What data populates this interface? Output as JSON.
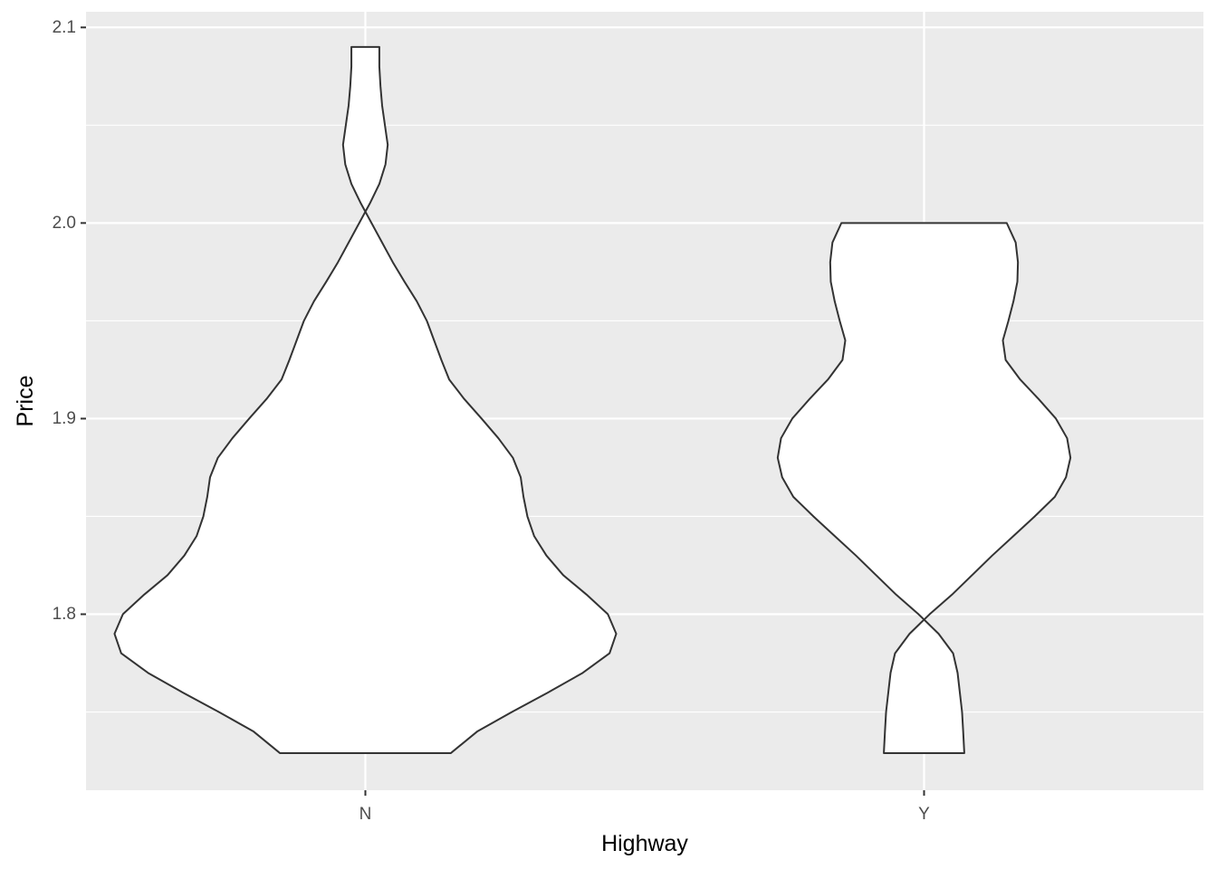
{
  "chart_data": {
    "type": "violin",
    "title": "",
    "xlabel": "Highway",
    "ylabel": "Price",
    "categories": [
      "N",
      "Y"
    ],
    "ylim": [
      1.71,
      2.108
    ],
    "y_ticks": [
      1.8,
      1.9,
      2.0,
      2.1
    ],
    "y_tick_labels": [
      "1.8",
      "1.9",
      "2.0",
      "2.1"
    ],
    "grid": true,
    "legend": "none",
    "colors": {
      "panel": "#ebebeb",
      "grid": "#ffffff",
      "violin_fill": "#ffffff",
      "violin_stroke": "#333333",
      "tick_text": "#4d4d4d",
      "title_text": "#000000"
    },
    "violins": [
      {
        "category": "N",
        "min": 1.729,
        "max": 2.09,
        "profile": [
          [
            1.729,
            0.153
          ],
          [
            1.74,
            0.2
          ],
          [
            1.75,
            0.262
          ],
          [
            1.76,
            0.327
          ],
          [
            1.77,
            0.389
          ],
          [
            1.78,
            0.437
          ],
          [
            1.79,
            0.449
          ],
          [
            1.8,
            0.434
          ],
          [
            1.81,
            0.396
          ],
          [
            1.82,
            0.354
          ],
          [
            1.83,
            0.324
          ],
          [
            1.84,
            0.302
          ],
          [
            1.85,
            0.29
          ],
          [
            1.86,
            0.283
          ],
          [
            1.87,
            0.278
          ],
          [
            1.88,
            0.264
          ],
          [
            1.89,
            0.238
          ],
          [
            1.9,
            0.208
          ],
          [
            1.91,
            0.177
          ],
          [
            1.92,
            0.15
          ],
          [
            1.93,
            0.136
          ],
          [
            1.94,
            0.123
          ],
          [
            1.95,
            0.11
          ],
          [
            1.96,
            0.092
          ],
          [
            1.97,
            0.07
          ],
          [
            1.98,
            0.049
          ],
          [
            1.99,
            0.03
          ],
          [
            2.0,
            0.011
          ],
          [
            2.01,
            -0.008
          ],
          [
            2.02,
            -0.025
          ],
          [
            2.03,
            -0.036
          ],
          [
            2.04,
            -0.04
          ],
          [
            2.05,
            -0.035
          ],
          [
            2.06,
            -0.03
          ],
          [
            2.07,
            -0.027
          ],
          [
            2.08,
            -0.025
          ],
          [
            2.09,
            -0.025
          ]
        ]
      },
      {
        "category": "Y",
        "min": 1.729,
        "max": 2.0,
        "profile": [
          [
            1.729,
            0.072
          ],
          [
            1.74,
            0.07
          ],
          [
            1.75,
            0.068
          ],
          [
            1.76,
            0.064
          ],
          [
            1.77,
            0.06
          ],
          [
            1.78,
            0.052
          ],
          [
            1.79,
            0.026
          ],
          [
            1.8,
            -0.01
          ],
          [
            1.81,
            -0.05
          ],
          [
            1.82,
            -0.086
          ],
          [
            1.83,
            -0.122
          ],
          [
            1.84,
            -0.16
          ],
          [
            1.85,
            -0.198
          ],
          [
            1.86,
            -0.234
          ],
          [
            1.87,
            -0.254
          ],
          [
            1.88,
            -0.262
          ],
          [
            1.89,
            -0.256
          ],
          [
            1.9,
            -0.236
          ],
          [
            1.91,
            -0.205
          ],
          [
            1.92,
            -0.172
          ],
          [
            1.93,
            -0.146
          ],
          [
            1.94,
            -0.141
          ],
          [
            1.95,
            -0.151
          ],
          [
            1.96,
            -0.16
          ],
          [
            1.97,
            -0.167
          ],
          [
            1.98,
            -0.168
          ],
          [
            1.99,
            -0.164
          ],
          [
            2.0,
            -0.148
          ]
        ]
      }
    ]
  }
}
